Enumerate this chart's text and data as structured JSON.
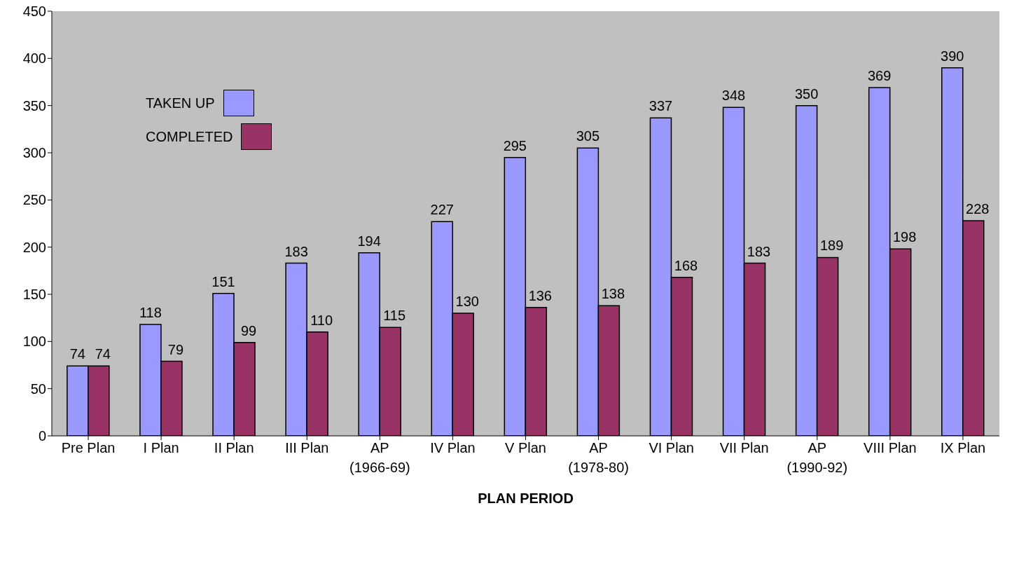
{
  "chart_data": {
    "type": "bar",
    "xlabel": "PLAN PERIOD",
    "categories": [
      "Pre Plan",
      "I Plan",
      "II Plan",
      "III Plan",
      "AP\n(1966-69)",
      "IV Plan",
      "V Plan",
      "AP\n(1978-80)",
      "VI Plan",
      "VII Plan",
      "AP\n(1990-92)",
      "VIII Plan",
      "IX Plan"
    ],
    "series": [
      {
        "name": "TAKEN UP",
        "color": "#9999ff",
        "values": [
          74,
          118,
          151,
          183,
          194,
          227,
          295,
          305,
          337,
          348,
          350,
          369,
          390
        ]
      },
      {
        "name": "COMPLETED",
        "color": "#993366",
        "values": [
          74,
          79,
          99,
          110,
          115,
          130,
          136,
          138,
          168,
          183,
          189,
          198,
          228
        ]
      }
    ],
    "ylim": [
      0,
      450
    ],
    "yticks": [
      0,
      50,
      100,
      150,
      200,
      250,
      300,
      350,
      400,
      450
    ],
    "data_labels": true,
    "legend": "top left",
    "grid": false
  }
}
